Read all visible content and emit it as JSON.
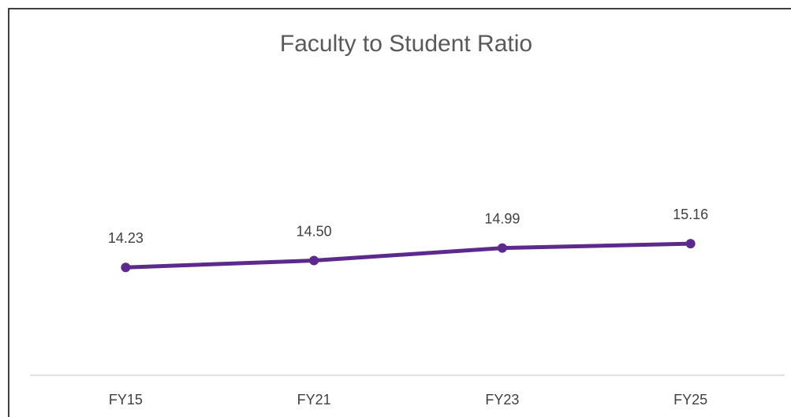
{
  "chart_data": {
    "type": "line",
    "title": "Faculty to Student Ratio",
    "categories": [
      "FY15",
      "FY21",
      "FY23",
      "FY25"
    ],
    "series": [
      {
        "name": "Faculty to Student Ratio",
        "color": "#5b2a8c",
        "values": [
          14.23,
          14.5,
          14.99,
          15.16
        ],
        "value_labels": [
          "14.23",
          "14.50",
          "14.99",
          "15.16"
        ]
      }
    ],
    "ylim": [
      10,
      16
    ]
  }
}
